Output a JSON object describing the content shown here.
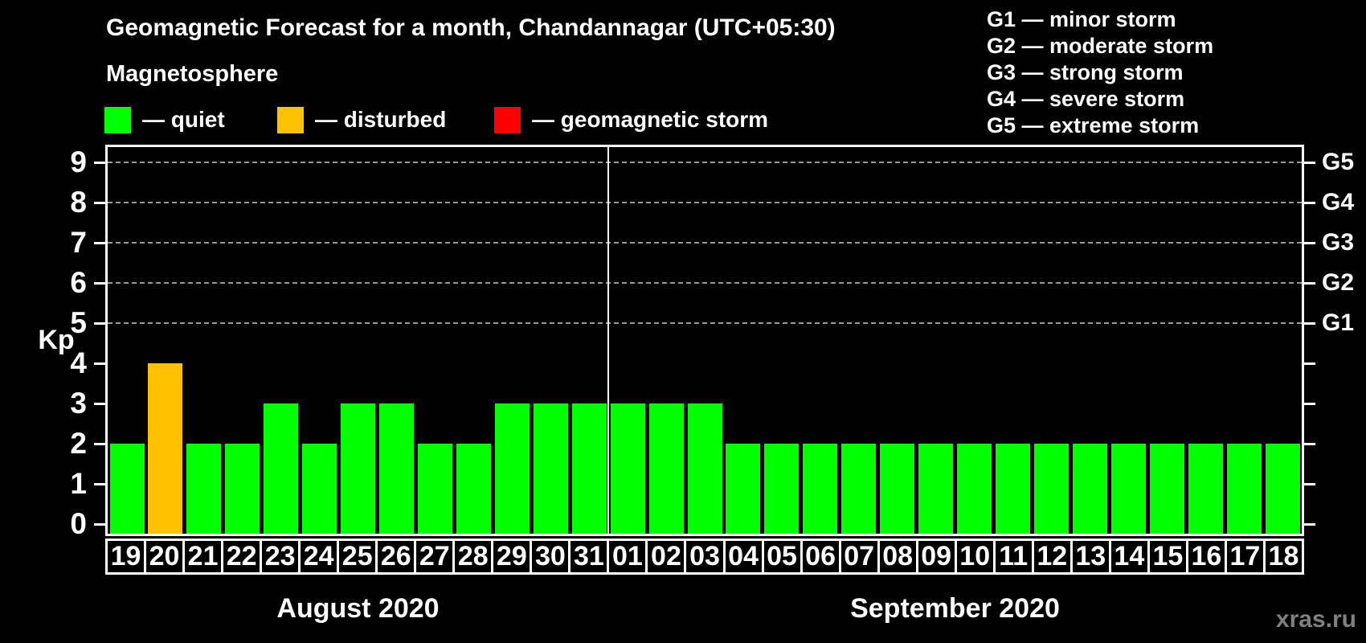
{
  "title": "Geomagnetic Forecast for a month, Chandannagar (UTC+05:30)",
  "subtitle": "Magnetosphere",
  "legend": [
    {
      "name": "quiet",
      "label": "— quiet",
      "color": "#00ff00"
    },
    {
      "name": "disturbed",
      "label": "— disturbed",
      "color": "#ffc000"
    },
    {
      "name": "geomagnetic-storm",
      "label": "— geomagnetic storm",
      "color": "#ff0000"
    }
  ],
  "g_legend": [
    "G1 — minor storm",
    "G2 — moderate storm",
    "G3 — strong storm",
    "G4 — severe storm",
    "G5 — extreme storm"
  ],
  "watermark": "xras.ru",
  "chart_data": {
    "type": "bar",
    "ylabel": "Kp",
    "ylim": [
      0,
      9
    ],
    "yticks": [
      0,
      1,
      2,
      3,
      4,
      5,
      6,
      7,
      8,
      9
    ],
    "gridlines_at": [
      5,
      6,
      7,
      8,
      9
    ],
    "grid": "dashed",
    "right_axis": [
      {
        "kp": 5,
        "label": "G1"
      },
      {
        "kp": 6,
        "label": "G2"
      },
      {
        "kp": 7,
        "label": "G3"
      },
      {
        "kp": 8,
        "label": "G4"
      },
      {
        "kp": 9,
        "label": "G5"
      }
    ],
    "status_colors": {
      "quiet": "#00ff00",
      "disturbed": "#ffc000",
      "storm": "#ff0000"
    },
    "months": [
      {
        "label": "August 2020",
        "days": [
          {
            "day": "19",
            "kp": 2,
            "status": "quiet"
          },
          {
            "day": "20",
            "kp": 4,
            "status": "disturbed"
          },
          {
            "day": "21",
            "kp": 2,
            "status": "quiet"
          },
          {
            "day": "22",
            "kp": 2,
            "status": "quiet"
          },
          {
            "day": "23",
            "kp": 3,
            "status": "quiet"
          },
          {
            "day": "24",
            "kp": 2,
            "status": "quiet"
          },
          {
            "day": "25",
            "kp": 3,
            "status": "quiet"
          },
          {
            "day": "26",
            "kp": 3,
            "status": "quiet"
          },
          {
            "day": "27",
            "kp": 2,
            "status": "quiet"
          },
          {
            "day": "28",
            "kp": 2,
            "status": "quiet"
          },
          {
            "day": "29",
            "kp": 3,
            "status": "quiet"
          },
          {
            "day": "30",
            "kp": 3,
            "status": "quiet"
          },
          {
            "day": "31",
            "kp": 3,
            "status": "quiet"
          }
        ]
      },
      {
        "label": "September 2020",
        "days": [
          {
            "day": "01",
            "kp": 3,
            "status": "quiet"
          },
          {
            "day": "02",
            "kp": 3,
            "status": "quiet"
          },
          {
            "day": "03",
            "kp": 3,
            "status": "quiet"
          },
          {
            "day": "04",
            "kp": 2,
            "status": "quiet"
          },
          {
            "day": "05",
            "kp": 2,
            "status": "quiet"
          },
          {
            "day": "06",
            "kp": 2,
            "status": "quiet"
          },
          {
            "day": "07",
            "kp": 2,
            "status": "quiet"
          },
          {
            "day": "08",
            "kp": 2,
            "status": "quiet"
          },
          {
            "day": "09",
            "kp": 2,
            "status": "quiet"
          },
          {
            "day": "10",
            "kp": 2,
            "status": "quiet"
          },
          {
            "day": "11",
            "kp": 2,
            "status": "quiet"
          },
          {
            "day": "12",
            "kp": 2,
            "status": "quiet"
          },
          {
            "day": "13",
            "kp": 2,
            "status": "quiet"
          },
          {
            "day": "14",
            "kp": 2,
            "status": "quiet"
          },
          {
            "day": "15",
            "kp": 2,
            "status": "quiet"
          },
          {
            "day": "16",
            "kp": 2,
            "status": "quiet"
          },
          {
            "day": "17",
            "kp": 2,
            "status": "quiet"
          },
          {
            "day": "18",
            "kp": 2,
            "status": "quiet"
          }
        ]
      }
    ]
  }
}
